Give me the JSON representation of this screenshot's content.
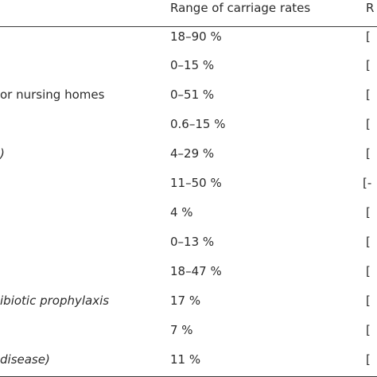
{
  "header": {
    "range_label": "Range of carriage rates",
    "ref_label": "R"
  },
  "rows": [
    {
      "group": "",
      "rate": "18–90 %",
      "ref": "["
    },
    {
      "group": "",
      "rate": "0–15 %",
      "ref": "["
    },
    {
      "group": "or nursing homes",
      "rate": "0–51 %",
      "ref": "["
    },
    {
      "group": "",
      "rate": "0.6–15 %",
      "ref": "["
    },
    {
      "group": ")",
      "rate": "4–29 %",
      "ref": "["
    },
    {
      "group": "",
      "rate": "11–50 %",
      "ref": "[-"
    },
    {
      "group": "",
      "rate": "4 %",
      "ref": "["
    },
    {
      "group": "",
      "rate": "0–13 %",
      "ref": "["
    },
    {
      "group": "",
      "rate": "18–47 %",
      "ref": "["
    },
    {
      "group": "ibiotic prophylaxis",
      "rate": "17 %",
      "ref": "["
    },
    {
      "group": "",
      "rate": "7 %",
      "ref": "["
    },
    {
      "group": "disease)",
      "rate": "11 %",
      "ref": "["
    }
  ]
}
